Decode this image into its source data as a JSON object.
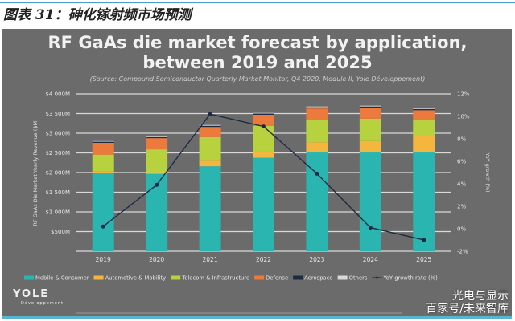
{
  "caption": "图表 31：砷化镓射频市场预测",
  "watermark": {
    "line1": "光电与显示",
    "line2": "百家号/未来智库"
  },
  "logo": {
    "name": "YOLE",
    "sub": "Développement"
  },
  "chart_data": {
    "type": "bar",
    "stacked": true,
    "title": "RF GaAs die market forecast by application, between 2019 and 2025",
    "title_lines": [
      "RF GaAs die market forecast by application,",
      "between 2019 and 2025"
    ],
    "subtitle": "(Source: Compound Semiconductor Quarterly Market Monitor, Q4 2020, Module II, Yole Développement)",
    "ylabel": "RF GaAs Die Market Yearly Revenue ($M)",
    "y2label": "YoY growth (%)",
    "ylim": [
      0,
      4000
    ],
    "y2lim": [
      -2,
      12
    ],
    "yticks": [
      "$500M",
      "$1 000M",
      "$1 500M",
      "$2 000M",
      "$2 500M",
      "$3 000M",
      "$3 500M",
      "$4 000M"
    ],
    "ytick_values": [
      500,
      1000,
      1500,
      2000,
      2500,
      3000,
      3500,
      4000
    ],
    "y2ticks": [
      "-2%",
      "0%",
      "2%",
      "4%",
      "6%",
      "8%",
      "10%",
      "12%"
    ],
    "y2tick_values": [
      -2,
      0,
      2,
      4,
      6,
      8,
      10,
      12
    ],
    "grid": true,
    "legend_position": "bottom",
    "categories": [
      "2019",
      "2020",
      "2021",
      "2022",
      "2023",
      "2024",
      "2025"
    ],
    "series": [
      {
        "name": "Mobile & Consumer",
        "color": "#2ab5b0",
        "values": [
          2000,
          1965,
          2160,
          2375,
          2510,
          2510,
          2510
        ]
      },
      {
        "name": "Automotive & Mobility",
        "color": "#f4b63e",
        "values": [
          25,
          40,
          140,
          175,
          260,
          290,
          410
        ]
      },
      {
        "name": "Telecom & Infrastructure",
        "color": "#b8d13f",
        "values": [
          430,
          585,
          600,
          640,
          575,
          570,
          425
        ]
      },
      {
        "name": "Defense",
        "color": "#ec7a3c",
        "values": [
          300,
          285,
          260,
          280,
          285,
          280,
          240
        ]
      },
      {
        "name": "Aerospace",
        "color": "#1e2a44",
        "values": [
          30,
          25,
          30,
          30,
          30,
          30,
          30
        ]
      },
      {
        "name": "Others",
        "color": "#d8d8d8",
        "values": [
          15,
          15,
          20,
          15,
          20,
          20,
          15
        ]
      }
    ],
    "line_series": {
      "name": "YoY growth rate (%)",
      "color": "#1e2a44",
      "axis": "right",
      "values": [
        0.2,
        3.9,
        10.2,
        9.1,
        4.9,
        0.1,
        -1.0
      ]
    }
  }
}
